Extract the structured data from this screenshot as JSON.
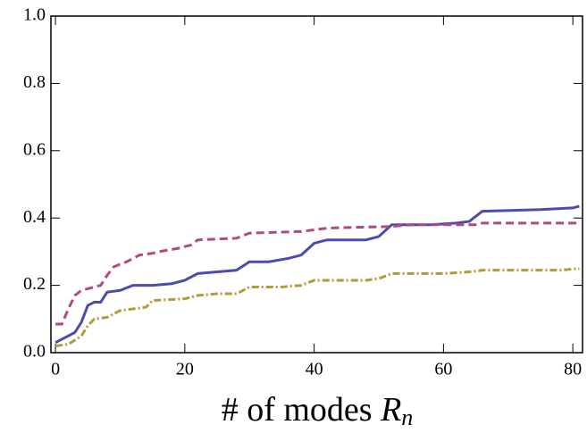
{
  "chart_data": {
    "type": "line",
    "xlabel": {
      "text": "# of modes",
      "var": "R",
      "sub": "n"
    },
    "xlim": [
      -0.7,
      81.5
    ],
    "ylim": [
      0,
      1
    ],
    "xticks": [
      0,
      20,
      40,
      60,
      80
    ],
    "yticks": [
      {
        "value": 0,
        "label": "0.0"
      },
      {
        "value": 0.2,
        "label": "0.2"
      },
      {
        "value": 0.4,
        "label": "0.4"
      },
      {
        "value": 0.6,
        "label": "0.6"
      },
      {
        "value": 0.8,
        "label": "0.8"
      },
      {
        "value": 1,
        "label": "1.0"
      }
    ],
    "series": [
      {
        "color": "#4b4bb0",
        "dash": "none",
        "x": [
          0,
          1,
          2,
          3,
          4,
          5,
          6,
          7,
          8,
          10,
          12,
          15,
          18,
          20,
          22,
          25,
          28,
          30,
          33,
          36,
          38,
          40,
          42,
          48,
          50,
          52,
          58,
          62,
          64,
          66,
          75,
          80,
          81
        ],
        "values": [
          0.03,
          0.04,
          0.05,
          0.06,
          0.09,
          0.14,
          0.15,
          0.15,
          0.18,
          0.185,
          0.2,
          0.2,
          0.205,
          0.215,
          0.235,
          0.24,
          0.245,
          0.27,
          0.27,
          0.28,
          0.29,
          0.325,
          0.335,
          0.335,
          0.345,
          0.38,
          0.38,
          0.385,
          0.39,
          0.42,
          0.425,
          0.43,
          0.435
        ]
      },
      {
        "color": "#b04a82",
        "dash": "9 5",
        "x": [
          0,
          1,
          2,
          3,
          4,
          5,
          7,
          8,
          9,
          11,
          13,
          15,
          16,
          19,
          21,
          22,
          28,
          30,
          38,
          40,
          42,
          52,
          55,
          65,
          66,
          81
        ],
        "values": [
          0.085,
          0.085,
          0.13,
          0.17,
          0.185,
          0.19,
          0.2,
          0.23,
          0.255,
          0.27,
          0.29,
          0.295,
          0.3,
          0.31,
          0.32,
          0.335,
          0.34,
          0.355,
          0.36,
          0.365,
          0.37,
          0.375,
          0.38,
          0.38,
          0.385,
          0.385
        ]
      },
      {
        "color": "#b39a3a",
        "dash": "8 3 2 3",
        "x": [
          0,
          2,
          4,
          5,
          6,
          8,
          10,
          12,
          14,
          15,
          20,
          22,
          25,
          28,
          30,
          35,
          38,
          40,
          48,
          50,
          52,
          60,
          64,
          66,
          78,
          81
        ],
        "values": [
          0.02,
          0.025,
          0.05,
          0.08,
          0.1,
          0.105,
          0.125,
          0.13,
          0.135,
          0.155,
          0.16,
          0.17,
          0.175,
          0.175,
          0.195,
          0.195,
          0.2,
          0.215,
          0.215,
          0.22,
          0.235,
          0.235,
          0.24,
          0.245,
          0.245,
          0.25
        ]
      }
    ]
  }
}
